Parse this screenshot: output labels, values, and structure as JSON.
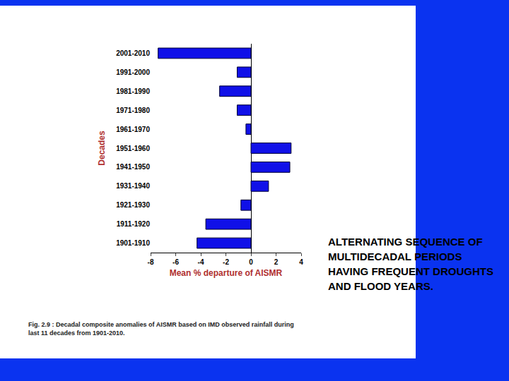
{
  "chart_data": {
    "type": "bar",
    "orientation": "horizontal",
    "categories": [
      "2001-2010",
      "1991-2000",
      "1981-1990",
      "1971-1980",
      "1961-1970",
      "1951-1960",
      "1941-1950",
      "1931-1940",
      "1921-1930",
      "1911-1920",
      "1901-1910"
    ],
    "values": [
      -7.4,
      -1.1,
      -2.5,
      -1.1,
      -0.4,
      3.2,
      3.1,
      1.4,
      -0.8,
      -3.6,
      -4.3
    ],
    "color": "#1010e8",
    "xlabel": "Mean % departure of AISMR",
    "ylabel": "Decades",
    "xlim": [
      -8,
      4
    ],
    "xticks": [
      -8,
      -6,
      -4,
      -2,
      0,
      2,
      4
    ],
    "grid": false,
    "caption": "Fig. 2.9 : Decadal composite anomalies of AISMR based on IMD observed rainfall during last 11 decades from 1901-2010.",
    "annotation": "ALTERNATING  SEQUENCE OF MULTIDECADAL PERIODS HAVING FREQUENT DROUGHTS AND FLOOD YEARS."
  }
}
